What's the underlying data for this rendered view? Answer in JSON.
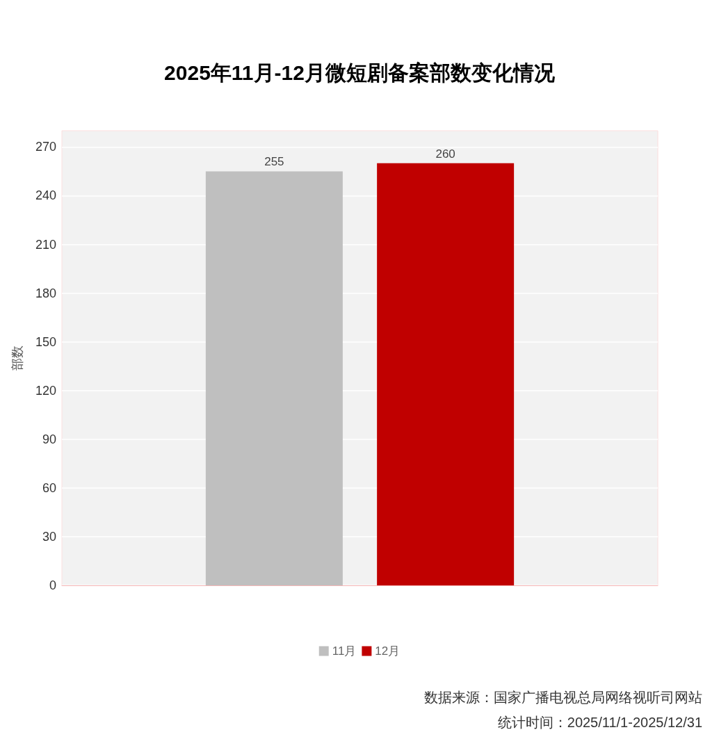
{
  "chart_data": {
    "type": "bar",
    "title": "2025年11月-12月微短剧备案部数变化情况",
    "ylabel": "部数",
    "categories": [
      null
    ],
    "series": [
      {
        "name": "11月",
        "color": "#bfbfbf",
        "values": [
          255
        ]
      },
      {
        "name": "12月",
        "color": "#c00000",
        "values": [
          260
        ]
      }
    ],
    "ylim": [
      0,
      280
    ],
    "yticks": [
      0,
      30,
      60,
      90,
      120,
      150,
      180,
      210,
      240,
      270
    ],
    "grid": "y",
    "legend": "bottom",
    "data_labels": true,
    "annotations": [
      "数据来源：国家广播电视总局网络视听司网站",
      "统计时间：2025/11/1-2025/12/31"
    ]
  }
}
